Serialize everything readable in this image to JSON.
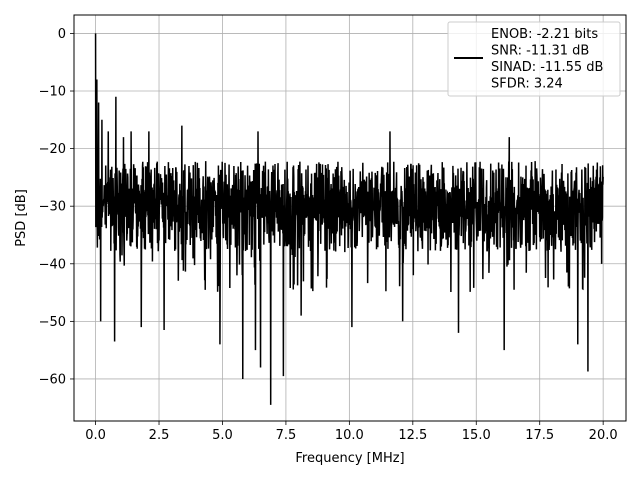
{
  "chart_data": {
    "type": "line",
    "xlabel": "Frequency [MHz]",
    "ylabel": "PSD [dB]",
    "xlim": [
      -0.85,
      20.9
    ],
    "ylim": [
      -67.3,
      3.2
    ],
    "xticks": [
      0.0,
      2.5,
      5.0,
      7.5,
      10.0,
      12.5,
      15.0,
      17.5,
      20.0
    ],
    "xtick_labels": [
      "0.0",
      "2.5",
      "5.0",
      "7.5",
      "10.0",
      "12.5",
      "15.0",
      "17.5",
      "20.0"
    ],
    "yticks": [
      0,
      -10,
      -20,
      -30,
      -40,
      -50,
      -60
    ],
    "ytick_labels": [
      "0",
      "−10",
      "−20",
      "−30",
      "−40",
      "−50",
      "−60"
    ],
    "grid": true,
    "legend_position": "top-right",
    "legend_lines": [
      "ENOB: -2.21 bits",
      "SNR: -11.31 dB",
      "SINAD: -11.55 dB",
      "SFDR: 3.24"
    ],
    "series": [
      {
        "color": "#000000",
        "x_range": [
          0.0,
          20.0
        ],
        "typical_upper_db": -23,
        "typical_lower_db": -37,
        "median_db": -30,
        "peaks": [
          {
            "x": 0.0,
            "y": 0.0
          },
          {
            "x": 0.05,
            "y": -8.0
          },
          {
            "x": 0.12,
            "y": -12.0
          },
          {
            "x": 0.25,
            "y": -15.0
          },
          {
            "x": 0.5,
            "y": -17.0
          },
          {
            "x": 0.8,
            "y": -11.0
          },
          {
            "x": 1.1,
            "y": -18.0
          },
          {
            "x": 1.4,
            "y": -17.0
          },
          {
            "x": 2.1,
            "y": -17.0
          },
          {
            "x": 3.4,
            "y": -16.0
          },
          {
            "x": 6.4,
            "y": -17.0
          },
          {
            "x": 11.6,
            "y": -17.0
          },
          {
            "x": 16.3,
            "y": -18.0
          },
          {
            "x": 19.0,
            "y": -19.0
          }
        ],
        "dips": [
          {
            "x": 0.2,
            "y": -50.0
          },
          {
            "x": 0.75,
            "y": -53.5
          },
          {
            "x": 1.8,
            "y": -51.0
          },
          {
            "x": 2.7,
            "y": -51.5
          },
          {
            "x": 4.9,
            "y": -54.0
          },
          {
            "x": 5.8,
            "y": -60.0
          },
          {
            "x": 6.3,
            "y": -55.0
          },
          {
            "x": 6.5,
            "y": -58.0
          },
          {
            "x": 6.9,
            "y": -64.5
          },
          {
            "x": 7.4,
            "y": -59.5
          },
          {
            "x": 8.1,
            "y": -49.0
          },
          {
            "x": 10.1,
            "y": -51.0
          },
          {
            "x": 12.1,
            "y": -50.0
          },
          {
            "x": 14.3,
            "y": -52.0
          },
          {
            "x": 16.1,
            "y": -55.0
          },
          {
            "x": 19.4,
            "y": -58.7
          },
          {
            "x": 19.0,
            "y": -54.0
          }
        ]
      }
    ]
  }
}
